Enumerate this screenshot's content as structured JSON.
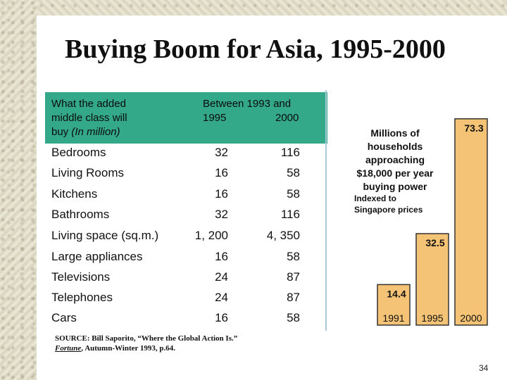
{
  "title": "Buying Boom for Asia, 1995-2000",
  "table": {
    "header_left": "What the added\nmiddle class will\nbuy",
    "header_unit": "(In million)",
    "header_between": "Between 1993 and",
    "col1": "1995",
    "col2": "2000",
    "rows": [
      {
        "label": "Bedrooms",
        "v1995": "32",
        "v2000": "116"
      },
      {
        "label": "Living Rooms",
        "v1995": "16",
        "v2000": "58"
      },
      {
        "label": "Kitchens",
        "v1995": "16",
        "v2000": "58"
      },
      {
        "label": "Bathrooms",
        "v1995": "32",
        "v2000": "116"
      },
      {
        "label": "Living space (sq.m.)",
        "v1995": "1, 200",
        "v2000": "4, 350"
      },
      {
        "label": "Large appliances",
        "v1995": "16",
        "v2000": "58"
      },
      {
        "label": "Televisions",
        "v1995": "24",
        "v2000": "87"
      },
      {
        "label": "Telephones",
        "v1995": "24",
        "v2000": "87"
      },
      {
        "label": "Cars",
        "v1995": "16",
        "v2000": "58"
      }
    ]
  },
  "chart_annotation": "Millions of\nhouseholds\napproaching\n$18,000 per year\nbuying power",
  "chart_note": "Indexed to\nSingapore prices",
  "chart_data": {
    "type": "bar",
    "categories": [
      "1991",
      "1995",
      "2000"
    ],
    "values": [
      14.4,
      32.5,
      73.3
    ],
    "title": "",
    "xlabel": "",
    "ylabel": "",
    "ylim": [
      0,
      80
    ],
    "bar_color": "#f5c375"
  },
  "source": {
    "line1": "SOURCE: Bill Saporito, “Where the Global Action Is.”",
    "pub": "Fortune",
    "line2_rest": ", Autumn-Winter 1993, p.64."
  },
  "page_number": "34",
  "colors": {
    "header_box": "#34a98a"
  }
}
